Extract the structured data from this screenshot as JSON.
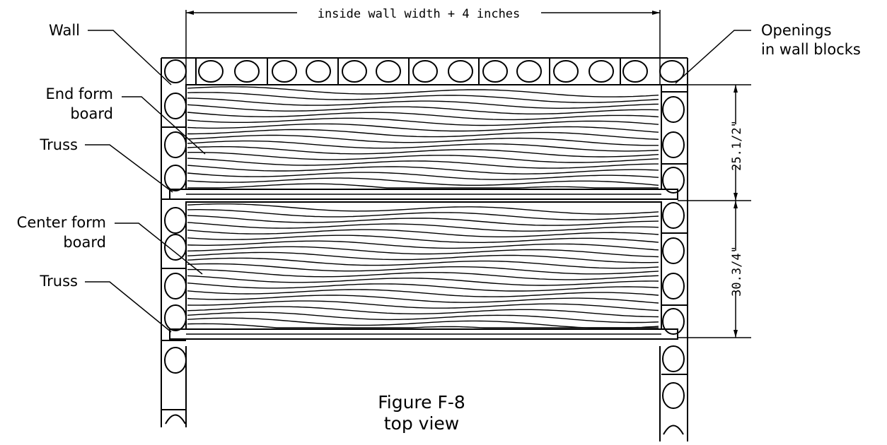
{
  "labels": {
    "wall": "Wall",
    "end_form_board_1": "End form",
    "end_form_board_2": "board",
    "truss_top": "Truss",
    "center_form_board_1": "Center form",
    "center_form_board_2": "board",
    "truss_bottom": "Truss",
    "openings_1": "Openings",
    "openings_2": "in wall blocks"
  },
  "dimensions": {
    "top": "inside wall width + 4 inches",
    "end_section": "25.1/2\"",
    "center_section": "30.3/4\""
  },
  "caption": {
    "line1": "Figure F-8",
    "line2": "top view"
  }
}
